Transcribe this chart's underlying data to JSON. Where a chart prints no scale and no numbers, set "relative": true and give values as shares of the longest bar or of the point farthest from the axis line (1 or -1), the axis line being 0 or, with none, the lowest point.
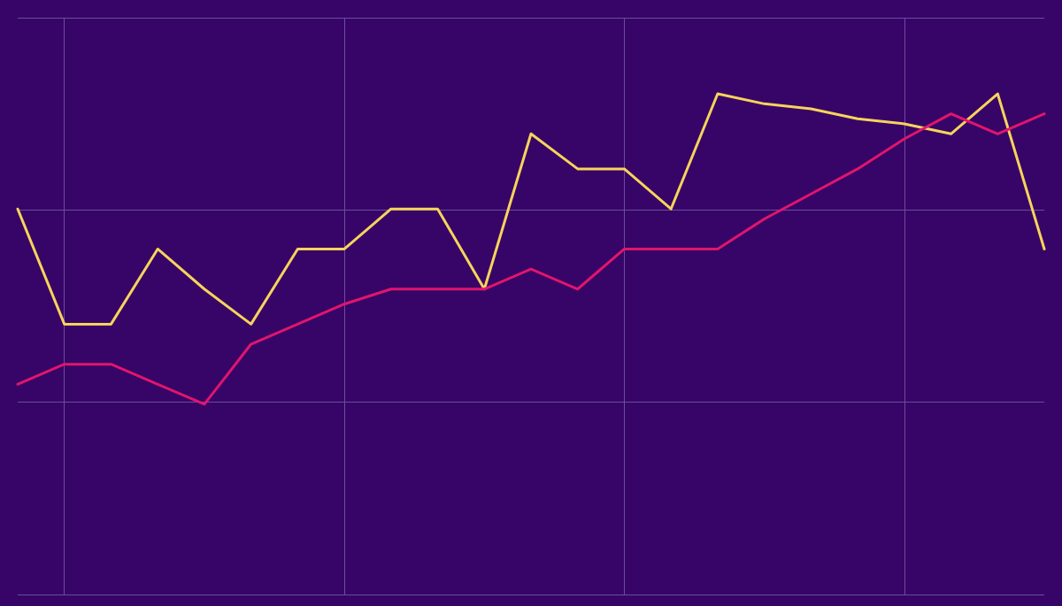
{
  "chart_data": {
    "type": "line",
    "relative": true,
    "grid": true,
    "marker": "none",
    "line_style": "solid",
    "categories": [
      null,
      null,
      null,
      null,
      null,
      null,
      null,
      null,
      null,
      null,
      null,
      null,
      null,
      null,
      null,
      null,
      null,
      null,
      null,
      null,
      null,
      null,
      null
    ],
    "series": [
      {
        "color": "#f7d35c",
        "values": [
          0.77,
          0.54,
          0.54,
          0.69,
          0.61,
          0.54,
          0.69,
          0.69,
          0.77,
          0.77,
          0.61,
          0.92,
          0.85,
          0.85,
          0.77,
          1,
          0.98,
          0.97,
          0.95,
          0.94,
          0.92,
          1,
          0.69
        ]
      },
      {
        "color": "#e0156e",
        "values": [
          0.42,
          0.46,
          0.46,
          0.42,
          0.38,
          0.5,
          0.54,
          0.58,
          0.61,
          0.61,
          0.61,
          0.65,
          0.61,
          0.69,
          0.69,
          0.69,
          0.75,
          0.8,
          0.85,
          0.91,
          0.96,
          0.92,
          0.96
        ]
      }
    ]
  }
}
